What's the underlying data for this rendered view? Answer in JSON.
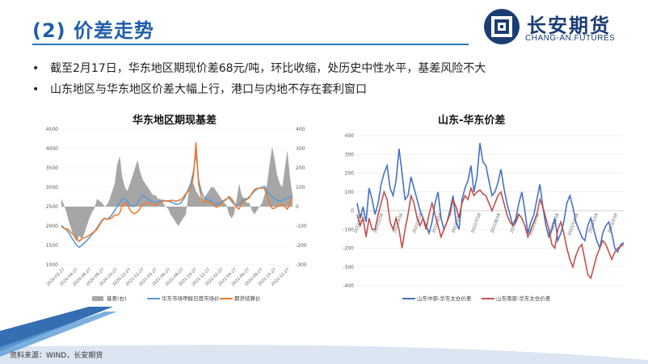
{
  "slide": {
    "title": "(2) 价差走势",
    "logo_cn": "长安期货",
    "logo_en": "CHANG-AN.FUTURES",
    "source": "资料来源：WIND，长安期货"
  },
  "bullets": [
    "截至2月17日，华东地区期现价差68元/吨，环比收缩，处历史中性水平，基差风险不大",
    "山东地区与华东地区价差大幅上行，港口与内地不存在套利窗口"
  ],
  "colors": {
    "title": "#1f5fa8",
    "basis_area": "#a6a6a6",
    "spot_line": "#5b9bd5",
    "futures_line": "#ed7d31",
    "sd_central": "#4472c4",
    "sd_south": "#c0504d"
  },
  "chart_data": [
    {
      "type": "line",
      "title": "华东地区期现基差",
      "x_ticks": [
        "2020-02-27",
        "2020-04-27",
        "2020-06-27",
        "2020-08-27",
        "2020-10-27",
        "2020-12-27",
        "2021-02-27",
        "2021-04-27",
        "2021-06-27",
        "2021-08-27",
        "2021-10-27",
        "2021-12-27",
        "2022-02-27",
        "2022-04-27",
        "2022-06-27",
        "2022-08-27",
        "2022-10-27",
        "2022-12-27"
      ],
      "ylim_left": [
        1000,
        4500
      ],
      "yticks_left": [
        1000,
        1500,
        2000,
        2500,
        3000,
        3500,
        4000,
        4500
      ],
      "ylim_right": [
        -300,
        400
      ],
      "yticks_right": [
        -300,
        -200,
        -100,
        0,
        100,
        200,
        300,
        400
      ],
      "legend_position": "bottom",
      "series": [
        {
          "name": "基差(右)",
          "axis": "right",
          "kind": "area",
          "values": [
            40,
            10,
            -30,
            -80,
            -120,
            -160,
            -180,
            -150,
            -170,
            -140,
            -100,
            -60,
            -30,
            -10,
            40,
            30,
            20,
            0,
            10,
            40,
            80,
            120,
            220,
            260,
            150,
            100,
            80,
            120,
            160,
            200,
            240,
            180,
            140,
            120,
            100,
            80,
            60,
            60,
            40,
            40,
            20,
            0,
            -10,
            -40,
            -60,
            -80,
            -100,
            -80,
            -60,
            -40,
            60,
            140,
            120,
            80,
            60,
            40,
            40,
            60,
            80,
            100,
            100,
            80,
            60,
            40,
            20,
            10,
            -40,
            -60,
            -40,
            40,
            120,
            60,
            40,
            20,
            20,
            -20,
            -40,
            -20,
            0,
            20,
            60,
            120,
            220,
            310,
            240,
            160,
            120,
            100,
            200,
            290,
            150,
            60
          ]
        },
        {
          "name": "华东市场甲醇日度市场价",
          "axis": "left",
          "kind": "line",
          "values": [
            2020,
            1950,
            1900,
            1820,
            1700,
            1600,
            1500,
            1450,
            1500,
            1560,
            1620,
            1700,
            1780,
            1850,
            1950,
            2050,
            2150,
            2200,
            2180,
            2220,
            2300,
            2400,
            2500,
            2600,
            2700,
            2700,
            2620,
            2540,
            2500,
            2520,
            2600,
            2700,
            2800,
            2750,
            2700,
            2660,
            2620,
            2600,
            2620,
            2650,
            2660,
            2650,
            2640,
            2620,
            2600,
            2560,
            2560,
            2600,
            2680,
            2800,
            2950,
            3100,
            3400,
            3900,
            3200,
            2900,
            2750,
            2700,
            2680,
            2640,
            2600,
            2560,
            2580,
            2620,
            2660,
            2700,
            2720,
            2640,
            2560,
            2520,
            2560,
            2640,
            2700,
            2700,
            2750,
            2820,
            2900,
            2950,
            2980,
            3000,
            3020,
            2900,
            2800,
            2760,
            2700,
            2660,
            2640,
            2660,
            2700,
            2720,
            2750,
            2800
          ]
        },
        {
          "name": "期货结算价",
          "axis": "left",
          "kind": "line",
          "values": [
            1980,
            1940,
            1930,
            1900,
            1820,
            1760,
            1680,
            1600,
            1670,
            1700,
            1720,
            1760,
            1810,
            1860,
            1910,
            2020,
            2130,
            2200,
            2170,
            2180,
            2220,
            2280,
            2280,
            2340,
            2550,
            2600,
            2540,
            2420,
            2340,
            2320,
            2360,
            2460,
            2560,
            2570,
            2600,
            2580,
            2560,
            2540,
            2580,
            2610,
            2640,
            2650,
            2650,
            2660,
            2660,
            2640,
            2660,
            2680,
            2740,
            2840,
            2890,
            2960,
            3280,
            4160,
            3100,
            2760,
            2630,
            2640,
            2620,
            2600,
            2560,
            2480,
            2520,
            2580,
            2640,
            2690,
            2760,
            2700,
            2600,
            2480,
            2440,
            2580,
            2660,
            2680,
            2730,
            2840,
            2940,
            2970,
            2980,
            2980,
            2960,
            2780,
            2580,
            2450,
            2460,
            2500,
            2520,
            2560,
            2500,
            2430,
            2600,
            2740
          ]
        }
      ]
    },
    {
      "type": "line",
      "title": "山东-华东价差",
      "x_ticks": [
        "2022/1/18",
        "2022/2/18",
        "2022/3/18",
        "2022/4/18",
        "2022/5/18",
        "2022/6/18",
        "2022/7/18",
        "2022/8/18",
        "2022/9/18",
        "2022/10/18",
        "2022/11/18",
        "2022/12/18",
        "2023/1/18",
        "2023/2/18"
      ],
      "ylim": [
        -400,
        400
      ],
      "yticks": [
        -400,
        -300,
        -200,
        -100,
        0,
        100,
        200,
        300,
        400
      ],
      "legend_position": "bottom",
      "series": [
        {
          "name": "山东中部-华东太仓价差",
          "values": [
            40,
            -40,
            20,
            -60,
            120,
            60,
            -20,
            40,
            140,
            200,
            240,
            120,
            80,
            160,
            330,
            200,
            60,
            80,
            180,
            120,
            60,
            0,
            -40,
            -80,
            -120,
            -60,
            40,
            100,
            -40,
            -100,
            -60,
            0,
            80,
            -60,
            -100,
            60,
            120,
            160,
            240,
            100,
            180,
            360,
            260,
            240,
            160,
            80,
            100,
            150,
            220,
            120,
            40,
            -20,
            -80,
            -40,
            40,
            100,
            0,
            -120,
            -60,
            -20,
            60,
            140,
            20,
            -80,
            -140,
            -100,
            -40,
            -160,
            -120,
            -60,
            40,
            80,
            20,
            -60,
            -100,
            -140,
            -160,
            -80,
            -40,
            -100,
            -160,
            -200,
            -120,
            -80,
            -60,
            -120,
            -200,
            -220,
            -180,
            -170
          ]
        },
        {
          "name": "山东南部-华东太仓价差",
          "values": [
            -20,
            -80,
            -40,
            -140,
            -40,
            -100,
            -100,
            -20,
            40,
            100,
            60,
            -60,
            -100,
            -40,
            -100,
            -200,
            -100,
            -20,
            80,
            40,
            -40,
            -80,
            -40,
            -100,
            -20,
            40,
            -20,
            -80,
            -140,
            -100,
            -60,
            -20,
            60,
            20,
            -40,
            40,
            80,
            60,
            120,
            80,
            100,
            110,
            90,
            80,
            40,
            0,
            40,
            80,
            100,
            40,
            -20,
            -60,
            -80,
            -60,
            -20,
            -40,
            -80,
            -140,
            -100,
            -60,
            -20,
            60,
            20,
            -40,
            -100,
            -180,
            -200,
            -100,
            -60,
            -120,
            -200,
            -260,
            -300,
            -240,
            -200,
            -180,
            -260,
            -340,
            -360,
            -300,
            -240,
            -200,
            -160,
            -180,
            -220,
            -260,
            -220,
            -200,
            -190,
            -180
          ]
        }
      ]
    }
  ]
}
